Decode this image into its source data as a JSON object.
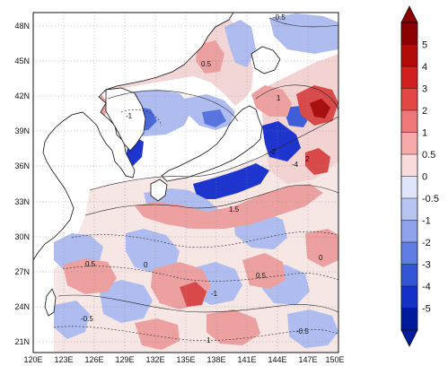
{
  "map": {
    "lat_labels": [
      "48N",
      "45N",
      "42N",
      "39N",
      "36N",
      "33N",
      "30N",
      "27N",
      "24N",
      "21N"
    ],
    "lon_labels": [
      "120E",
      "123E",
      "126E",
      "129E",
      "132E",
      "135E",
      "138E",
      "141E",
      "144E",
      "147E",
      "150E"
    ],
    "colors": {
      "ocean_neutral": "#f6f1ef",
      "land": "#ffffff",
      "coastline": "#111111",
      "grid": "#8a8a8a",
      "neg_light": "#c9d4f2",
      "neg_mid": "#8ea4e6",
      "neg_strong": "#3f63da",
      "neg_deep": "#1228c9",
      "pos_light": "#f5c7c7",
      "pos_mid": "#ea8a8a",
      "pos_strong": "#d74040",
      "pos_deep": "#a80f0f"
    },
    "contour_labels": [
      "-0.5",
      "0.5",
      "-1",
      "1",
      "1.5",
      "-2",
      "2",
      "-4",
      "0",
      "-0.5",
      "0.5",
      "1",
      "-1",
      "-0.5",
      "0.5",
      "0"
    ]
  },
  "colorbar": {
    "ticks": [
      "5",
      "4",
      "3",
      "2",
      "1",
      "0.5",
      "0",
      "-0.5",
      "-1",
      "-2",
      "-3",
      "-4",
      "-5"
    ],
    "colors": [
      "#8b0000",
      "#b30a0a",
      "#d11f1f",
      "#e44545",
      "#ef7777",
      "#f6aaaa",
      "#fbdcdc",
      "#dfe5fb",
      "#b8c5f4",
      "#8ea3ec",
      "#5f7de3",
      "#3255d8",
      "#1230c8",
      "#001a9e"
    ]
  }
}
